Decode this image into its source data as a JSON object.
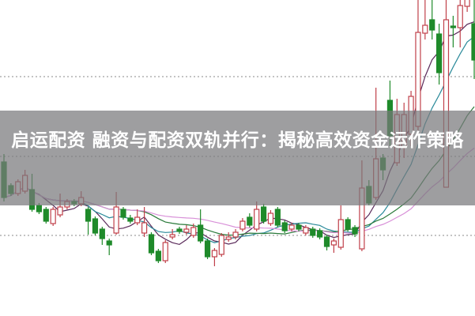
{
  "title": "启运配资 融资与配资双轨并行：揭秘高效资金运作策略",
  "colors": {
    "up": "#c0404a",
    "down": "#1f8a2a",
    "grid": "#888888",
    "overlay": "#78787c",
    "ma_lines": [
      "#5a2a5a",
      "#2a8a9a",
      "#2a7a3a",
      "#d890d8"
    ]
  },
  "chart_data": {
    "type": "candlestick",
    "title": "",
    "xlabel": "",
    "ylabel": "",
    "ylim": [
      0,
      400
    ],
    "grid": "horizontal dotted",
    "candle_fields": [
      "open",
      "close",
      "high",
      "low"
    ],
    "candles": [
      [
        195,
        150,
        205,
        145
      ],
      [
        165,
        155,
        168,
        152
      ],
      [
        155,
        170,
        173,
        152
      ],
      [
        158,
        178,
        185,
        155
      ],
      [
        160,
        135,
        180,
        132
      ],
      [
        140,
        132,
        143,
        129
      ],
      [
        135,
        120,
        138,
        117
      ],
      [
        117,
        135,
        138,
        114
      ],
      [
        128,
        138,
        155,
        125
      ],
      [
        138,
        145,
        148,
        135
      ],
      [
        145,
        142,
        148,
        139
      ],
      [
        142,
        150,
        158,
        139
      ],
      [
        135,
        120,
        138,
        103
      ],
      [
        123,
        105,
        126,
        102
      ],
      [
        110,
        98,
        113,
        90
      ],
      [
        95,
        90,
        98,
        77
      ],
      [
        105,
        138,
        157,
        103
      ],
      [
        135,
        125,
        138,
        122
      ],
      [
        124,
        120,
        128,
        117
      ],
      [
        118,
        125,
        135,
        115
      ],
      [
        105,
        118,
        138,
        100
      ],
      [
        103,
        80,
        106,
        77
      ],
      [
        82,
        70,
        85,
        67
      ],
      [
        70,
        93,
        96,
        67
      ],
      [
        100,
        103,
        110,
        97
      ],
      [
        110,
        107,
        113,
        104
      ],
      [
        106,
        110,
        115,
        103
      ],
      [
        102,
        112,
        117,
        99
      ],
      [
        115,
        95,
        135,
        92
      ],
      [
        95,
        75,
        98,
        72
      ],
      [
        75,
        83,
        86,
        63
      ],
      [
        78,
        102,
        105,
        75
      ],
      [
        97,
        100,
        106,
        94
      ],
      [
        100,
        106,
        110,
        97
      ],
      [
        110,
        120,
        124,
        107
      ],
      [
        125,
        115,
        130,
        112
      ],
      [
        110,
        135,
        145,
        107
      ],
      [
        138,
        120,
        142,
        117
      ],
      [
        117,
        130,
        134,
        114
      ],
      [
        135,
        115,
        138,
        112
      ],
      [
        118,
        108,
        121,
        105
      ],
      [
        110,
        115,
        118,
        107
      ],
      [
        115,
        110,
        118,
        107
      ],
      [
        105,
        112,
        115,
        102
      ],
      [
        110,
        102,
        113,
        99
      ],
      [
        108,
        100,
        111,
        97
      ],
      [
        100,
        88,
        103,
        83
      ],
      [
        90,
        95,
        98,
        80
      ],
      [
        87,
        122,
        140,
        84
      ],
      [
        122,
        110,
        125,
        107
      ],
      [
        112,
        104,
        115,
        100
      ],
      [
        85,
        162,
        197,
        82
      ],
      [
        164,
        143,
        172,
        140
      ],
      [
        150,
        199,
        289,
        147
      ],
      [
        200,
        185,
        205,
        172
      ],
      [
        273,
        228,
        298,
        215
      ],
      [
        194,
        255,
        275,
        190
      ],
      [
        214,
        255,
        270,
        200
      ],
      [
        230,
        278,
        285,
        215
      ],
      [
        240,
        359,
        400,
        235
      ],
      [
        358,
        368,
        400,
        350
      ],
      [
        375,
        362,
        400,
        350
      ],
      [
        357,
        308,
        370,
        293
      ],
      [
        163,
        375,
        400,
        163
      ],
      [
        367,
        365,
        380,
        340
      ],
      [
        365,
        393,
        400,
        340
      ],
      [
        392,
        405,
        410,
        385
      ],
      [
        370,
        324,
        400,
        300
      ]
    ],
    "grid_levels": [
      303,
      202,
      102
    ],
    "moving_averages": 4
  }
}
